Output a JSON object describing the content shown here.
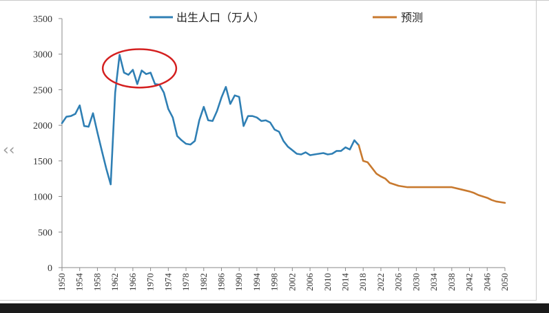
{
  "chart_data": {
    "type": "line",
    "title": "",
    "xlabel": "",
    "ylabel": "",
    "ylim": [
      0,
      3500
    ],
    "yticks": [
      0,
      500,
      1000,
      1500,
      2000,
      2500,
      3000,
      3500
    ],
    "xlim": [
      1950,
      2050
    ],
    "xticks": [
      "1950",
      "1954",
      "1958",
      "1962",
      "1966",
      "1970",
      "1974",
      "1978",
      "1982",
      "1986",
      "1990",
      "1994",
      "1998",
      "2002",
      "2006",
      "2010",
      "2014",
      "2018",
      "2022",
      "2026",
      "2030",
      "2034",
      "2038",
      "2042",
      "2046",
      "2050"
    ],
    "grid": false,
    "legend": "top",
    "series": [
      {
        "name": "出生人口（万人）",
        "color": "#2f7fb4",
        "points": [
          [
            1950,
            2030
          ],
          [
            1951,
            2120
          ],
          [
            1952,
            2130
          ],
          [
            1953,
            2160
          ],
          [
            1954,
            2280
          ],
          [
            1955,
            1990
          ],
          [
            1956,
            1980
          ],
          [
            1957,
            2170
          ],
          [
            1958,
            1900
          ],
          [
            1959,
            1640
          ],
          [
            1960,
            1390
          ],
          [
            1961,
            1170
          ],
          [
            1962,
            2460
          ],
          [
            1963,
            2990
          ],
          [
            1964,
            2740
          ],
          [
            1965,
            2710
          ],
          [
            1966,
            2780
          ],
          [
            1967,
            2580
          ],
          [
            1968,
            2770
          ],
          [
            1969,
            2720
          ],
          [
            1970,
            2740
          ],
          [
            1971,
            2580
          ],
          [
            1972,
            2570
          ],
          [
            1973,
            2460
          ],
          [
            1974,
            2230
          ],
          [
            1975,
            2110
          ],
          [
            1976,
            1850
          ],
          [
            1977,
            1790
          ],
          [
            1978,
            1740
          ],
          [
            1979,
            1730
          ],
          [
            1980,
            1780
          ],
          [
            1981,
            2070
          ],
          [
            1982,
            2260
          ],
          [
            1983,
            2070
          ],
          [
            1984,
            2060
          ],
          [
            1985,
            2200
          ],
          [
            1986,
            2390
          ],
          [
            1987,
            2540
          ],
          [
            1988,
            2300
          ],
          [
            1989,
            2420
          ],
          [
            1990,
            2400
          ],
          [
            1991,
            1990
          ],
          [
            1992,
            2130
          ],
          [
            1993,
            2130
          ],
          [
            1994,
            2110
          ],
          [
            1995,
            2060
          ],
          [
            1996,
            2070
          ],
          [
            1997,
            2040
          ],
          [
            1998,
            1940
          ],
          [
            1999,
            1910
          ],
          [
            2000,
            1780
          ],
          [
            2001,
            1700
          ],
          [
            2002,
            1650
          ],
          [
            2003,
            1600
          ],
          [
            2004,
            1590
          ],
          [
            2005,
            1620
          ],
          [
            2006,
            1580
          ],
          [
            2007,
            1590
          ],
          [
            2008,
            1600
          ],
          [
            2009,
            1610
          ],
          [
            2010,
            1590
          ],
          [
            2011,
            1600
          ],
          [
            2012,
            1640
          ],
          [
            2013,
            1640
          ],
          [
            2014,
            1690
          ],
          [
            2015,
            1660
          ],
          [
            2016,
            1790
          ],
          [
            2017,
            1720
          ]
        ]
      },
      {
        "name": "预测",
        "color": "#c8792e",
        "points": [
          [
            2017,
            1720
          ],
          [
            2018,
            1500
          ],
          [
            2019,
            1480
          ],
          [
            2020,
            1400
          ],
          [
            2021,
            1320
          ],
          [
            2022,
            1280
          ],
          [
            2023,
            1250
          ],
          [
            2024,
            1190
          ],
          [
            2025,
            1170
          ],
          [
            2026,
            1150
          ],
          [
            2027,
            1140
          ],
          [
            2028,
            1130
          ],
          [
            2030,
            1130
          ],
          [
            2032,
            1130
          ],
          [
            2034,
            1130
          ],
          [
            2036,
            1130
          ],
          [
            2038,
            1130
          ],
          [
            2040,
            1100
          ],
          [
            2042,
            1070
          ],
          [
            2043,
            1050
          ],
          [
            2044,
            1020
          ],
          [
            2046,
            980
          ],
          [
            2047,
            950
          ],
          [
            2048,
            930
          ],
          [
            2050,
            910
          ]
        ]
      }
    ],
    "annotations": [
      {
        "type": "ellipse",
        "color": "#d42020",
        "x_range": [
          1962,
          1973
        ],
        "y_range": [
          2530,
          3070
        ]
      }
    ]
  }
}
